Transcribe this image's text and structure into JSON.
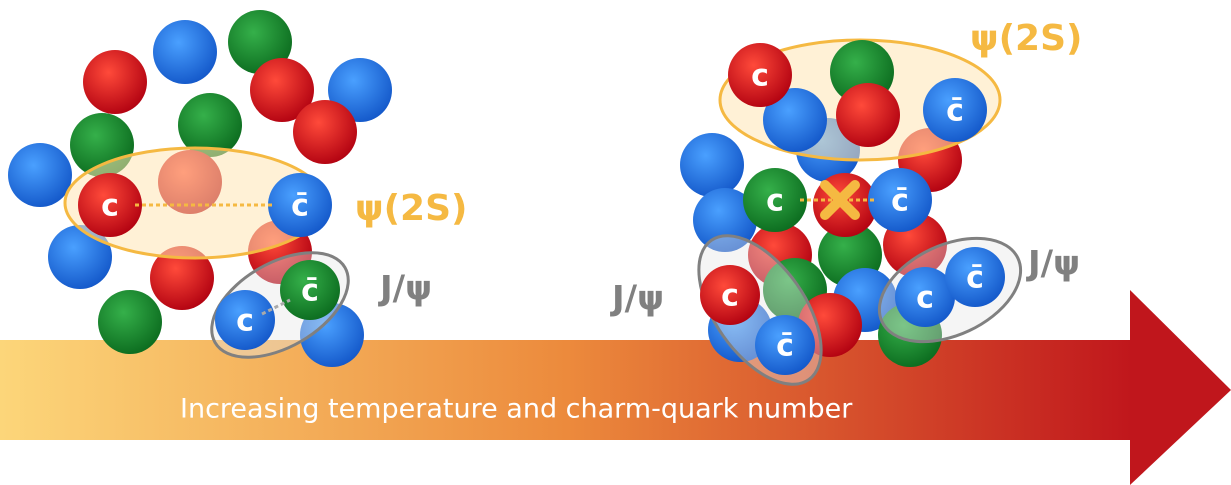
{
  "arrow": {
    "label": "Increasing temperature and charm-quark number"
  },
  "left_cluster": {
    "states": [
      "ψ(2S)",
      "J/ψ"
    ],
    "quarks": [
      "c",
      "c̄",
      "c̄",
      "c"
    ]
  },
  "right_cluster": {
    "states": [
      "ψ(2S)",
      "J/ψ",
      "J/ψ"
    ],
    "quarks": [
      "c",
      "c̄",
      "c",
      "c̄",
      "c",
      "c̄",
      "c",
      "c̄"
    ]
  }
}
